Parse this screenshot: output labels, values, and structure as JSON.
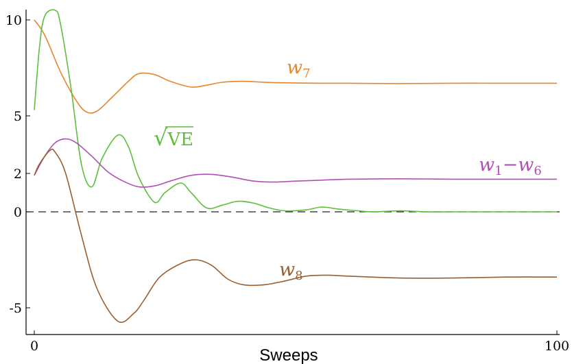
{
  "chart_data": {
    "type": "line",
    "xlabel": "Sweeps",
    "ylabel": "",
    "xlim": [
      0,
      100
    ],
    "ylim": [
      -6.3,
      10.5
    ],
    "x_ticks": [
      0,
      100
    ],
    "y_ticks": [
      10,
      5,
      2,
      0,
      -5
    ],
    "reference_line": {
      "y": 0,
      "style": "dashed"
    },
    "grid": false,
    "series": [
      {
        "name": "w7",
        "label": {
          "base": "w",
          "sub": "7"
        },
        "color": "#E8852A",
        "x": [
          0,
          2,
          5,
          8,
          10,
          12,
          15,
          18,
          20,
          23,
          26,
          30,
          33,
          36,
          40,
          44,
          48,
          55,
          60,
          70,
          80,
          90,
          100
        ],
        "y": [
          10.0,
          9.2,
          7.3,
          5.8,
          5.2,
          5.25,
          6.0,
          6.8,
          7.2,
          7.15,
          6.8,
          6.5,
          6.6,
          6.75,
          6.8,
          6.75,
          6.72,
          6.7,
          6.7,
          6.68,
          6.7,
          6.7,
          6.7
        ]
      },
      {
        "name": "√VE",
        "label": {
          "base": "√VE"
        },
        "color": "#5BBF3A",
        "x": [
          0,
          1,
          2,
          4,
          5,
          7,
          9,
          11,
          13,
          16,
          18,
          20,
          23,
          25,
          28,
          30,
          33,
          36,
          39,
          42,
          45,
          48,
          52,
          55,
          58,
          62,
          65,
          70,
          75,
          80,
          90,
          100
        ],
        "y": [
          5.3,
          8.6,
          10.2,
          10.5,
          9.8,
          6.5,
          2.5,
          1.3,
          2.8,
          4.0,
          3.4,
          1.8,
          0.5,
          1.0,
          1.5,
          1.0,
          0.2,
          0.35,
          0.55,
          0.45,
          0.2,
          0.05,
          0.1,
          0.25,
          0.15,
          0.05,
          0.0,
          0.05,
          0.0,
          0.0,
          0.0,
          0.0
        ]
      },
      {
        "name": "w1−w6",
        "label": {
          "base": "w",
          "sub": "1",
          "mid": "−",
          "base2": "w",
          "sub2": "6"
        },
        "color": "#B04EB5",
        "x": [
          0,
          2,
          4,
          6,
          8,
          11,
          14,
          17,
          20,
          23,
          26,
          30,
          34,
          38,
          42,
          46,
          50,
          55,
          60,
          70,
          80,
          90,
          100
        ],
        "y": [
          1.9,
          2.9,
          3.6,
          3.8,
          3.6,
          2.9,
          2.1,
          1.6,
          1.3,
          1.35,
          1.6,
          1.9,
          1.95,
          1.8,
          1.6,
          1.55,
          1.6,
          1.65,
          1.7,
          1.72,
          1.7,
          1.7,
          1.7
        ]
      },
      {
        "name": "w8",
        "label": {
          "base": "w",
          "sub": "8"
        },
        "color": "#9A5E2E",
        "x": [
          0,
          1,
          3,
          4,
          6,
          9,
          12,
          16,
          19,
          21,
          24,
          28,
          31,
          34,
          37,
          40,
          44,
          48,
          52,
          56,
          60,
          70,
          80,
          90,
          100
        ],
        "y": [
          1.9,
          2.5,
          3.2,
          3.1,
          2.0,
          -1.2,
          -4.0,
          -5.7,
          -5.3,
          -4.6,
          -3.4,
          -2.7,
          -2.5,
          -2.8,
          -3.5,
          -3.8,
          -3.8,
          -3.6,
          -3.35,
          -3.3,
          -3.35,
          -3.45,
          -3.45,
          -3.4,
          -3.4
        ]
      }
    ]
  }
}
